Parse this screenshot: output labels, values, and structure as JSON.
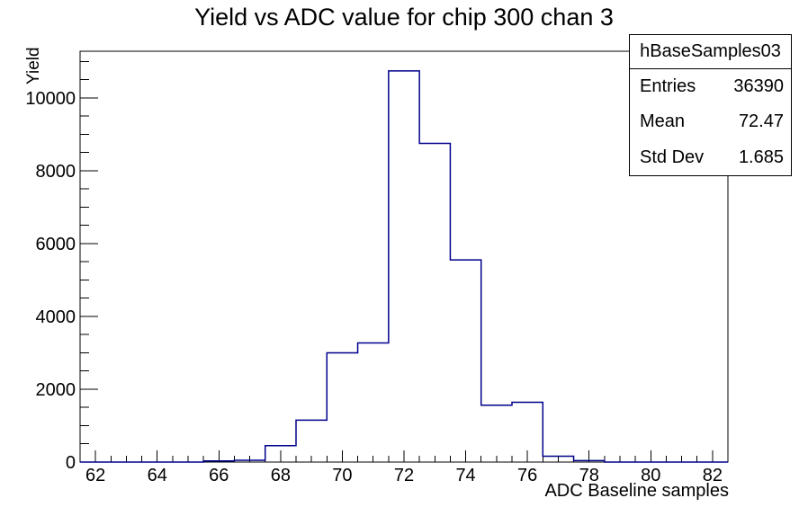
{
  "title": "Yield vs ADC value for chip 300 chan 3",
  "stats_box": {
    "header": "hBaseSamples03",
    "rows": [
      {
        "label": "Entries",
        "value": "36390"
      },
      {
        "label": "Mean",
        "value": "72.47"
      },
      {
        "label": "Std Dev",
        "value": "1.685"
      }
    ]
  },
  "chart_data": {
    "type": "bar",
    "subtype": "histogram-step-outline",
    "title": "Yield vs ADC value for chip 300 chan 3",
    "xlabel": "ADC Baseline samples",
    "ylabel": "Yield",
    "entries": 36390,
    "mean": 72.47,
    "std_dev": 1.685,
    "bin_edges": [
      61.5,
      62.5,
      63.5,
      64.5,
      65.5,
      66.5,
      67.5,
      68.5,
      69.5,
      70.5,
      71.5,
      72.5,
      73.5,
      74.5,
      75.5,
      76.5,
      77.5,
      78.5,
      79.5,
      80.5,
      81.5,
      82.5
    ],
    "counts": [
      0,
      0,
      0,
      0,
      30,
      50,
      450,
      1150,
      3000,
      3270,
      10740,
      8750,
      5550,
      1560,
      1640,
      160,
      40,
      0,
      0,
      0,
      0
    ],
    "xlim": [
      61.5,
      82.5
    ],
    "ylim": [
      0,
      11280
    ],
    "x_major_ticks": [
      62,
      64,
      66,
      68,
      70,
      72,
      74,
      76,
      78,
      80,
      82
    ],
    "x_minor_step": 0.5,
    "y_major_ticks": [
      0,
      2000,
      4000,
      6000,
      8000,
      10000
    ],
    "y_minor_step": 500,
    "grid": "off",
    "legend": "none",
    "line_color": "#00008c",
    "axis_color": "#000000",
    "background_color": "#ffffff"
  }
}
